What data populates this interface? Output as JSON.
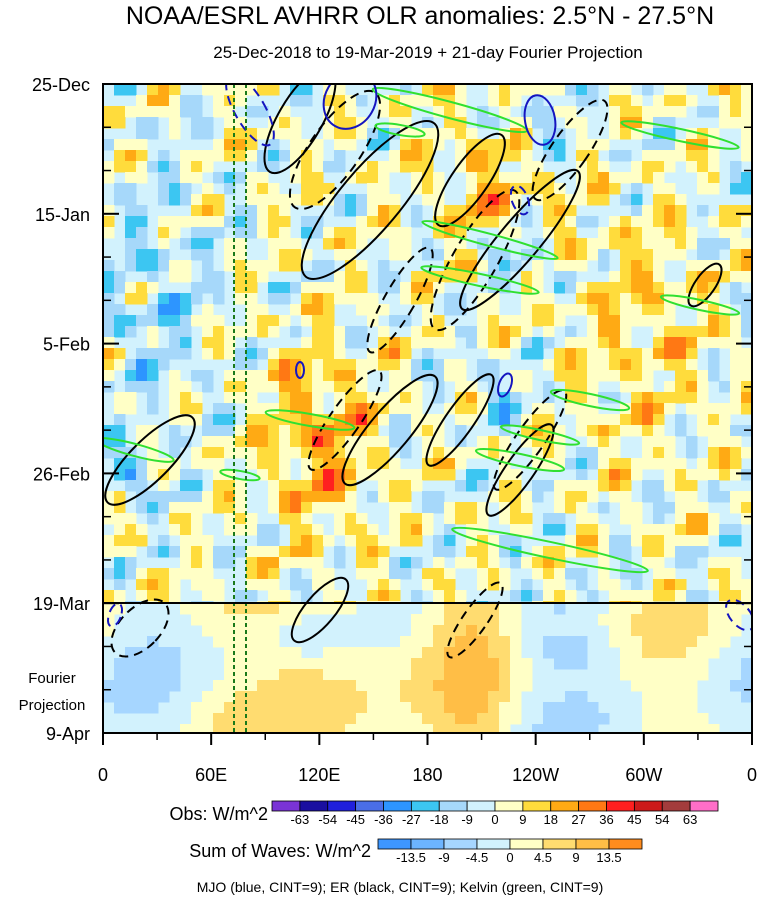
{
  "chart_data": {
    "type": "heatmap",
    "title": "NOAA/ESRL AVHRR OLR anomalies: 2.5°N - 27.5°N",
    "subtitle": "25-Dec-2018 to 19-Mar-2019 + 21-day Fourier Projection",
    "x_axis": {
      "label": "",
      "ticks": [
        "0",
        "60E",
        "120E",
        "180",
        "120W",
        "60W",
        "0"
      ],
      "tick_values": [
        0,
        60,
        120,
        180,
        240,
        300,
        360
      ]
    },
    "y_axis": {
      "ticks": [
        "25-Dec",
        "15-Jan",
        "5-Feb",
        "26-Feb",
        "19-Mar",
        "9-Apr"
      ],
      "tick_days": [
        0,
        21,
        42,
        63,
        84,
        105
      ]
    },
    "projection_label_line1": "Fourier",
    "projection_label_line2": "Projection",
    "obs_label": "Obs: W/m^2",
    "obs_levels": [
      "-63",
      "-54",
      "-45",
      "-36",
      "-27",
      "-18",
      "-9",
      "0",
      "9",
      "18",
      "27",
      "36",
      "45",
      "54",
      "63"
    ],
    "obs_colors": [
      "#7a33d6",
      "#1a0fa0",
      "#2020dc",
      "#4a6ee6",
      "#2d95ff",
      "#3cc6f2",
      "#a6d8fa",
      "#d2f2fd",
      "#ffffc6",
      "#ffdc3c",
      "#ffaa14",
      "#ff7814",
      "#ff2020",
      "#cc1a1a",
      "#a33c3c",
      "#ff6ec8"
    ],
    "waves_label": "Sum of Waves: W/m^2",
    "waves_levels": [
      "-13.5",
      "-9",
      "-4.5",
      "0",
      "4.5",
      "9",
      "13.5"
    ],
    "waves_colors": [
      "#3d96ff",
      "#6cb4ff",
      "#a6d6ff",
      "#d2f2fd",
      "#ffffc6",
      "#ffdc70",
      "#ffbe46",
      "#ff8c1e"
    ],
    "footer": "MJO (blue, CINT=9); ER (black, CINT=9); Kelvin (green, CINT=9)",
    "series": [
      {
        "name": "MJO",
        "color": "#1515c0"
      },
      {
        "name": "ER",
        "color": "#000000"
      },
      {
        "name": "Kelvin",
        "color": "#30e030"
      }
    ]
  }
}
